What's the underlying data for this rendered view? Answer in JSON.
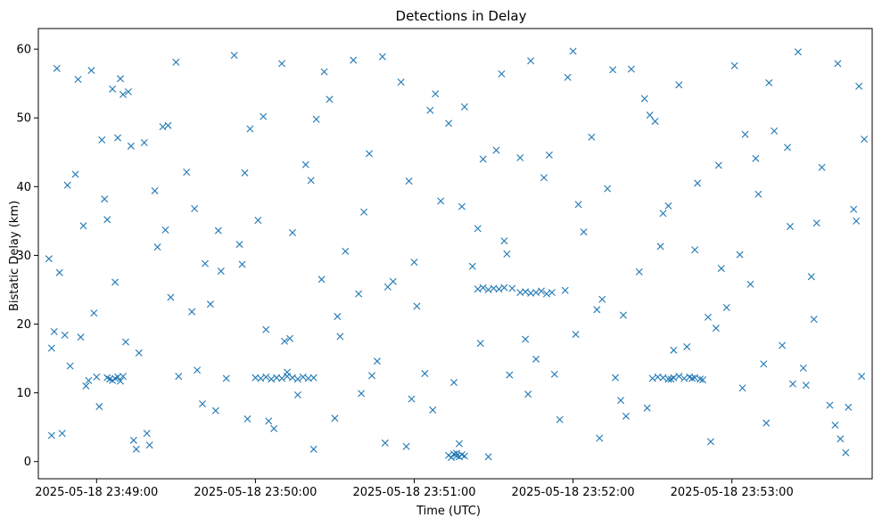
{
  "chart_data": {
    "type": "scatter",
    "title": "Detections in Delay",
    "xlabel": "Time (UTC)",
    "ylabel": "Bistatic Delay (km)",
    "x_is_time": true,
    "x_tick_labels": [
      "2025-05-18 23:49:00",
      "2025-05-18 23:50:00",
      "2025-05-18 23:51:00",
      "2025-05-18 23:52:00",
      "2025-05-18 23:53:00"
    ],
    "xlim": [
      "2025-05-18 23:48:38",
      "2025-05-18 23:53:53"
    ],
    "yticks": [
      0,
      10,
      20,
      30,
      40,
      50,
      60
    ],
    "ylim": [
      -2.5,
      63
    ],
    "grid": false,
    "marker": "x",
    "color": "#1f77b4",
    "series": [
      {
        "x": [
          "2025-05-18 23:48:42",
          "2025-05-18 23:48:43",
          "2025-05-18 23:48:44",
          "2025-05-18 23:48:45",
          "2025-05-18 23:48:46",
          "2025-05-18 23:48:48",
          "2025-05-18 23:48:50",
          "2025-05-18 23:48:52",
          "2025-05-18 23:48:54",
          "2025-05-18 23:48:55",
          "2025-05-18 23:48:57",
          "2025-05-18 23:48:58",
          "2025-05-18 23:49:00",
          "2025-05-18 23:49:02",
          "2025-05-18 23:49:04",
          "2025-05-18 23:49:06",
          "2025-05-18 23:49:07",
          "2025-05-18 23:49:09",
          "2025-05-18 23:49:11",
          "2025-05-18 23:49:12",
          "2025-05-18 23:49:14",
          "2025-05-18 23:49:16",
          "2025-05-18 23:49:18",
          "2025-05-18 23:49:20",
          "2025-05-18 23:49:22",
          "2025-05-18 23:49:25",
          "2025-05-18 23:49:28",
          "2025-05-18 23:49:31",
          "2025-05-18 23:49:34",
          "2025-05-18 23:49:37",
          "2025-05-18 23:49:40",
          "2025-05-18 23:49:43",
          "2025-05-18 23:49:46",
          "2025-05-18 23:49:49",
          "2025-05-18 23:49:52",
          "2025-05-18 23:49:55",
          "2025-05-18 23:49:58",
          "2025-05-18 23:50:01",
          "2025-05-18 23:50:04",
          "2025-05-18 23:50:07",
          "2025-05-18 23:50:10",
          "2025-05-18 23:50:13",
          "2025-05-18 23:50:16",
          "2025-05-18 23:50:19",
          "2025-05-18 23:50:22",
          "2025-05-18 23:50:25",
          "2025-05-18 23:50:28",
          "2025-05-18 23:50:31",
          "2025-05-18 23:50:34",
          "2025-05-18 23:50:37",
          "2025-05-18 23:50:40",
          "2025-05-18 23:50:43",
          "2025-05-18 23:50:46",
          "2025-05-18 23:50:49",
          "2025-05-18 23:50:52",
          "2025-05-18 23:50:55",
          "2025-05-18 23:50:58",
          "2025-05-18 23:51:01",
          "2025-05-18 23:51:04",
          "2025-05-18 23:51:07",
          "2025-05-18 23:51:10",
          "2025-05-18 23:51:13",
          "2025-05-18 23:51:16",
          "2025-05-18 23:51:19",
          "2025-05-18 23:51:22",
          "2025-05-18 23:51:25",
          "2025-05-18 23:51:28",
          "2025-05-18 23:51:31",
          "2025-05-18 23:51:34",
          "2025-05-18 23:51:37",
          "2025-05-18 23:51:40",
          "2025-05-18 23:51:43",
          "2025-05-18 23:51:46",
          "2025-05-18 23:51:49",
          "2025-05-18 23:51:52",
          "2025-05-18 23:51:55",
          "2025-05-18 23:51:58",
          "2025-05-18 23:52:01",
          "2025-05-18 23:52:04",
          "2025-05-18 23:52:07",
          "2025-05-18 23:52:10",
          "2025-05-18 23:52:13",
          "2025-05-18 23:52:16",
          "2025-05-18 23:52:19",
          "2025-05-18 23:52:22",
          "2025-05-18 23:52:25",
          "2025-05-18 23:52:28",
          "2025-05-18 23:52:31",
          "2025-05-18 23:52:34",
          "2025-05-18 23:52:37",
          "2025-05-18 23:52:40",
          "2025-05-18 23:52:43",
          "2025-05-18 23:52:46",
          "2025-05-18 23:52:49",
          "2025-05-18 23:52:52",
          "2025-05-18 23:52:55",
          "2025-05-18 23:52:58",
          "2025-05-18 23:53:01",
          "2025-05-18 23:53:04",
          "2025-05-18 23:53:07",
          "2025-05-18 23:53:10",
          "2025-05-18 23:53:13",
          "2025-05-18 23:53:16",
          "2025-05-18 23:53:19",
          "2025-05-18 23:53:22",
          "2025-05-18 23:53:25",
          "2025-05-18 23:53:28",
          "2025-05-18 23:53:31",
          "2025-05-18 23:53:34",
          "2025-05-18 23:53:37",
          "2025-05-18 23:53:40",
          "2025-05-18 23:53:43",
          "2025-05-18 23:53:46",
          "2025-05-18 23:53:48",
          "2025-05-18 23:53:49",
          "2025-05-18 23:53:50",
          "2025-05-18 23:48:43",
          "2025-05-18 23:48:49",
          "2025-05-18 23:48:56",
          "2025-05-18 23:49:03",
          "2025-05-18 23:49:10",
          "2025-05-18 23:49:19",
          "2025-05-18 23:49:27",
          "2025-05-18 23:49:36",
          "2025-05-18 23:49:45",
          "2025-05-18 23:49:54",
          "2025-05-18 23:50:03",
          "2025-05-18 23:50:12",
          "2025-05-18 23:50:21",
          "2025-05-18 23:50:30",
          "2025-05-18 23:50:39",
          "2025-05-18 23:50:48",
          "2025-05-18 23:50:57",
          "2025-05-18 23:51:06",
          "2025-05-18 23:51:15",
          "2025-05-18 23:51:24",
          "2025-05-18 23:51:33",
          "2025-05-18 23:51:42",
          "2025-05-18 23:51:51",
          "2025-05-18 23:52:00",
          "2025-05-18 23:52:09",
          "2025-05-18 23:52:18",
          "2025-05-18 23:52:27",
          "2025-05-18 23:52:36",
          "2025-05-18 23:52:45",
          "2025-05-18 23:52:54",
          "2025-05-18 23:53:03",
          "2025-05-18 23:53:12",
          "2025-05-18 23:53:21",
          "2025-05-18 23:53:30",
          "2025-05-18 23:53:39",
          "2025-05-18 23:53:47",
          "2025-05-18 23:48:53",
          "2025-05-18 23:49:01",
          "2025-05-18 23:49:08",
          "2025-05-18 23:49:15",
          "2025-05-18 23:49:23",
          "2025-05-18 23:49:30",
          "2025-05-18 23:49:38",
          "2025-05-18 23:49:47",
          "2025-05-18 23:49:56",
          "2025-05-18 23:50:05",
          "2025-05-18 23:50:14",
          "2025-05-18 23:50:23",
          "2025-05-18 23:50:32",
          "2025-05-18 23:50:41",
          "2025-05-18 23:50:50",
          "2025-05-18 23:50:59",
          "2025-05-18 23:51:08",
          "2025-05-18 23:51:17",
          "2025-05-18 23:51:26",
          "2025-05-18 23:51:35",
          "2025-05-18 23:51:44",
          "2025-05-18 23:51:53",
          "2025-05-18 23:52:02",
          "2025-05-18 23:52:11",
          "2025-05-18 23:52:20",
          "2025-05-18 23:52:29",
          "2025-05-18 23:52:38",
          "2025-05-18 23:52:47",
          "2025-05-18 23:52:56",
          "2025-05-18 23:53:05",
          "2025-05-18 23:53:14",
          "2025-05-18 23:53:23",
          "2025-05-18 23:53:32",
          "2025-05-18 23:53:41",
          "2025-05-18 23:48:47",
          "2025-05-18 23:48:59",
          "2025-05-18 23:49:13",
          "2025-05-18 23:49:26",
          "2025-05-18 23:49:41",
          "2025-05-18 23:49:57",
          "2025-05-18 23:50:11",
          "2025-05-18 23:50:26",
          "2025-05-18 23:50:44",
          "2025-05-18 23:51:00",
          "2025-05-18 23:51:18",
          "2025-05-18 23:51:36",
          "2025-05-18 23:51:57",
          "2025-05-18 23:52:15",
          "2025-05-18 23:52:33",
          "2025-05-18 23:52:51",
          "2025-05-18 23:53:09",
          "2025-05-18 23:53:27",
          "2025-05-18 23:53:44",
          "2025-05-18 23:49:04",
          "2025-05-18 23:49:05",
          "2025-05-18 23:49:06",
          "2025-05-18 23:49:07",
          "2025-05-18 23:49:08",
          "2025-05-18 23:49:09",
          "2025-05-18 23:49:10",
          "2025-05-18 23:50:00",
          "2025-05-18 23:50:02",
          "2025-05-18 23:50:04",
          "2025-05-18 23:50:06",
          "2025-05-18 23:50:08",
          "2025-05-18 23:50:10",
          "2025-05-18 23:50:12",
          "2025-05-18 23:50:14",
          "2025-05-18 23:50:16",
          "2025-05-18 23:50:18",
          "2025-05-18 23:50:20",
          "2025-05-18 23:50:22",
          "2025-05-18 23:52:30",
          "2025-05-18 23:52:32",
          "2025-05-18 23:52:34",
          "2025-05-18 23:52:36",
          "2025-05-18 23:52:38",
          "2025-05-18 23:52:40",
          "2025-05-18 23:52:42",
          "2025-05-18 23:52:44",
          "2025-05-18 23:52:46",
          "2025-05-18 23:52:48",
          "2025-05-18 23:51:24",
          "2025-05-18 23:51:26",
          "2025-05-18 23:51:28",
          "2025-05-18 23:51:30",
          "2025-05-18 23:51:32",
          "2025-05-18 23:51:34",
          "2025-05-18 23:51:40",
          "2025-05-18 23:51:42",
          "2025-05-18 23:51:44",
          "2025-05-18 23:51:46",
          "2025-05-18 23:51:48",
          "2025-05-18 23:51:50",
          "2025-05-18 23:51:13",
          "2025-05-18 23:51:14",
          "2025-05-18 23:51:15",
          "2025-05-18 23:51:16",
          "2025-05-18 23:51:17",
          "2025-05-18 23:51:18",
          "2025-05-18 23:51:19"
        ],
        "y": [
          29.5,
          3.8,
          18.9,
          57.2,
          27.5,
          18.4,
          13.9,
          41.8,
          18.1,
          34.3,
          11.8,
          56.9,
          12.3,
          46.8,
          35.2,
          54.2,
          26.1,
          55.7,
          17.4,
          53.8,
          3.1,
          15.8,
          46.4,
          2.4,
          39.4,
          48.7,
          23.9,
          12.4,
          42.1,
          36.8,
          8.4,
          22.9,
          33.6,
          12.1,
          59.1,
          28.7,
          48.4,
          35.1,
          19.2,
          4.8,
          57.9,
          17.9,
          9.7,
          43.2,
          1.8,
          26.5,
          52.7,
          21.1,
          30.6,
          58.4,
          9.9,
          44.8,
          14.6,
          2.7,
          26.2,
          55.2,
          40.8,
          22.6,
          12.8,
          7.5,
          37.9,
          49.2,
          1.2,
          51.6,
          28.4,
          17.2,
          0.7,
          45.3,
          32.1,
          25.2,
          44.2,
          9.8,
          14.9,
          41.3,
          24.6,
          6.1,
          55.9,
          18.5,
          33.4,
          47.2,
          3.4,
          39.7,
          12.2,
          21.3,
          57.1,
          27.6,
          7.8,
          49.5,
          36.1,
          12.0,
          54.8,
          16.7,
          30.8,
          11.9,
          2.9,
          43.1,
          22.4,
          57.6,
          10.7,
          25.8,
          38.9,
          5.6,
          48.1,
          16.9,
          34.2,
          59.6,
          11.1,
          20.7,
          42.8,
          8.2,
          57.9,
          1.3,
          36.7,
          54.6,
          12.4,
          46.9,
          16.5,
          40.2,
          11.0,
          38.2,
          53.4,
          4.1,
          48.9,
          21.8,
          7.4,
          31.6,
          50.2,
          13.0,
          40.9,
          6.3,
          24.4,
          58.9,
          2.2,
          51.1,
          11.5,
          33.9,
          56.4,
          17.8,
          44.6,
          59.7,
          22.1,
          8.9,
          52.8,
          37.2,
          12.1,
          19.4,
          30.1,
          14.2,
          45.7,
          26.9,
          5.3,
          35.0,
          55.6,
          8.0,
          47.1,
          1.8,
          31.2,
          58.1,
          13.3,
          27.7,
          42.0,
          5.9,
          33.3,
          49.8,
          18.2,
          36.3,
          25.4,
          9.1,
          53.5,
          2.6,
          44.0,
          30.2,
          58.3,
          12.7,
          37.4,
          23.6,
          6.6,
          50.4,
          16.2,
          40.5,
          28.1,
          47.6,
          55.1,
          11.3,
          34.7,
          3.3,
          4.1,
          21.6,
          45.9,
          33.7,
          28.8,
          6.2,
          17.5,
          56.7,
          12.5,
          29.0,
          37.1,
          12.6,
          24.9,
          57.0,
          31.3,
          21.0,
          44.1,
          13.6,
          7.9,
          12.2,
          12.0,
          11.8,
          12.1,
          12.3,
          11.7,
          12.4,
          12.2,
          12.1,
          12.3,
          12.0,
          12.2,
          12.1,
          12.4,
          12.2,
          12.0,
          12.3,
          12.1,
          12.2,
          12.1,
          12.3,
          12.2,
          12.0,
          12.2,
          12.4,
          12.1,
          12.3,
          12.2,
          12.0,
          25.1,
          25.3,
          25.0,
          25.2,
          25.1,
          25.3,
          24.6,
          24.7,
          24.5,
          24.6,
          24.8,
          24.4,
          0.9,
          0.6,
          1.1,
          0.8,
          0.7,
          1.0,
          0.8
        ]
      }
    ]
  }
}
